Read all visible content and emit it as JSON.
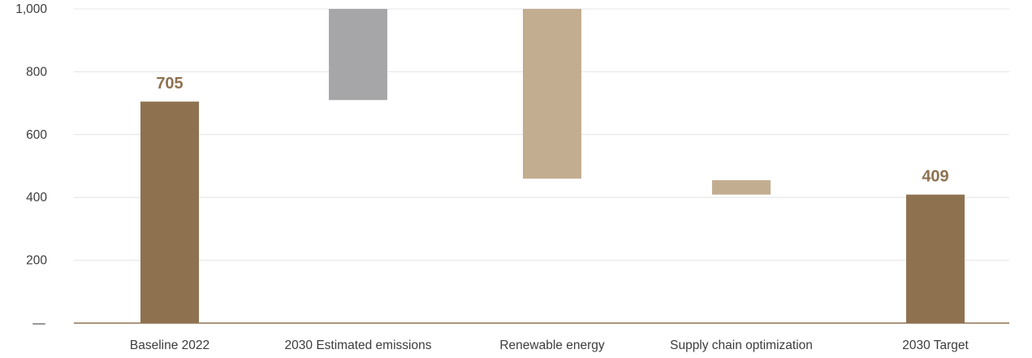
{
  "chart_data": {
    "type": "bar",
    "subtype": "waterfall",
    "categories": [
      "Baseline 2022",
      "2030 Estimated emissions",
      "Renewable energy",
      "Supply chain optimization",
      "2030 Target"
    ],
    "bars": [
      {
        "category": "Baseline 2022",
        "start": 0,
        "end": 705,
        "kind": "total"
      },
      {
        "category": "2030 Estimated emissions",
        "start": 710,
        "end": 1000,
        "kind": "increase"
      },
      {
        "category": "Renewable energy",
        "start": 460,
        "end": 1000,
        "kind": "decrease"
      },
      {
        "category": "Supply chain optimization",
        "start": 409,
        "end": 455,
        "kind": "decrease"
      },
      {
        "category": "2030 Target",
        "start": 0,
        "end": 409,
        "kind": "total"
      }
    ],
    "data_labels": [
      "705",
      "",
      "",
      "",
      "409"
    ],
    "yticks": [
      {
        "value": 1000,
        "label": "1,000"
      },
      {
        "value": 800,
        "label": "800"
      },
      {
        "value": 600,
        "label": "600"
      },
      {
        "value": 400,
        "label": "400"
      },
      {
        "value": 200,
        "label": "200"
      },
      {
        "value": 0,
        "label": "—"
      }
    ],
    "ylim": [
      0,
      1000
    ],
    "grid": true,
    "title": "",
    "xlabel": "",
    "ylabel": "",
    "colors": {
      "total": "#8e7250",
      "increase": "#a6a6a8",
      "decrease": "#c3ad91",
      "label": "#8e7250",
      "grid": "#e4e4e4",
      "axis": "#8e7250"
    }
  }
}
